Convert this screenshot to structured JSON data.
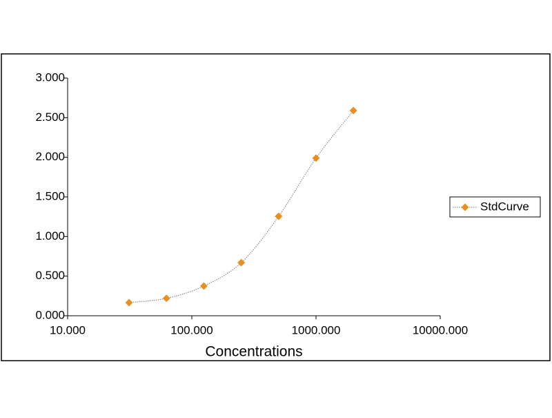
{
  "chart_data": {
    "type": "scatter",
    "xlabel": "Concentrations",
    "xscale": "log",
    "xlim": [
      10,
      10000
    ],
    "xticks": [
      {
        "value": 10,
        "label": "10.000"
      },
      {
        "value": 100,
        "label": "100.000"
      },
      {
        "value": 1000,
        "label": "1000.000"
      },
      {
        "value": 10000,
        "label": "10000.000"
      }
    ],
    "ylim": [
      0,
      3
    ],
    "yticks": [
      {
        "value": 0,
        "label": "0.000"
      },
      {
        "value": 0.5,
        "label": "0.500"
      },
      {
        "value": 1,
        "label": "1.000"
      },
      {
        "value": 1.5,
        "label": "1.500"
      },
      {
        "value": 2,
        "label": "2.000"
      },
      {
        "value": 2.5,
        "label": "2.500"
      },
      {
        "value": 3,
        "label": "3.000"
      }
    ],
    "legend": "right",
    "series": [
      {
        "name": "StdCurve",
        "color": "#e8901f",
        "x": [
          31.25,
          62.5,
          125,
          250,
          500,
          1000,
          2000
        ],
        "values": [
          0.166,
          0.22,
          0.375,
          0.67,
          1.255,
          1.99,
          2.59
        ]
      }
    ]
  }
}
